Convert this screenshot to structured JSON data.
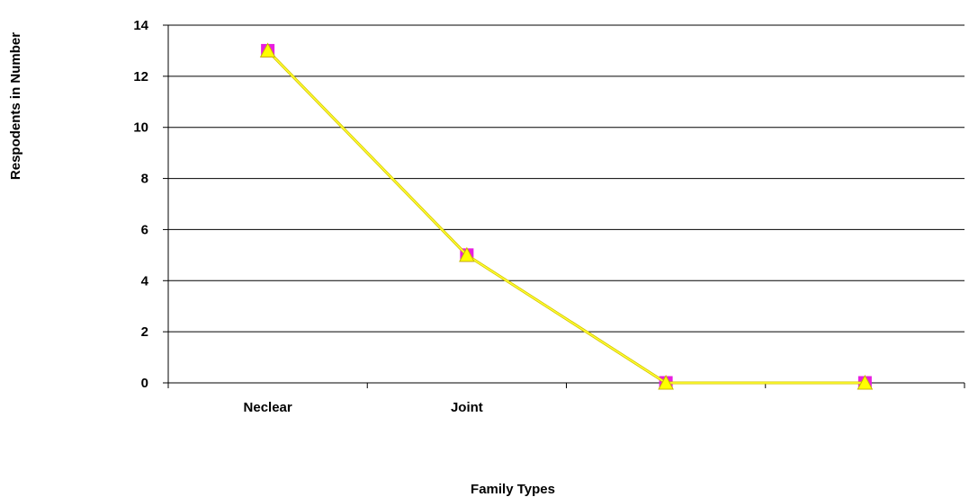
{
  "chart_data": {
    "type": "line",
    "categories": [
      "Neclear",
      "Joint",
      "",
      ""
    ],
    "series": [
      {
        "values": [
          13,
          5,
          0,
          0
        ],
        "color": "#e81ee0",
        "marker": "square"
      },
      {
        "values": [
          13,
          5,
          0,
          0
        ],
        "color": "#ffff00",
        "marker": "triangle"
      }
    ],
    "xlabel": "Family Types",
    "ylabel": "Respodents in Number",
    "ylim": [
      0,
      14
    ],
    "yticks": [
      0,
      2,
      4,
      6,
      8,
      10,
      12,
      14
    ],
    "grid": true,
    "legend": "none",
    "line_color": "#d4c400"
  }
}
